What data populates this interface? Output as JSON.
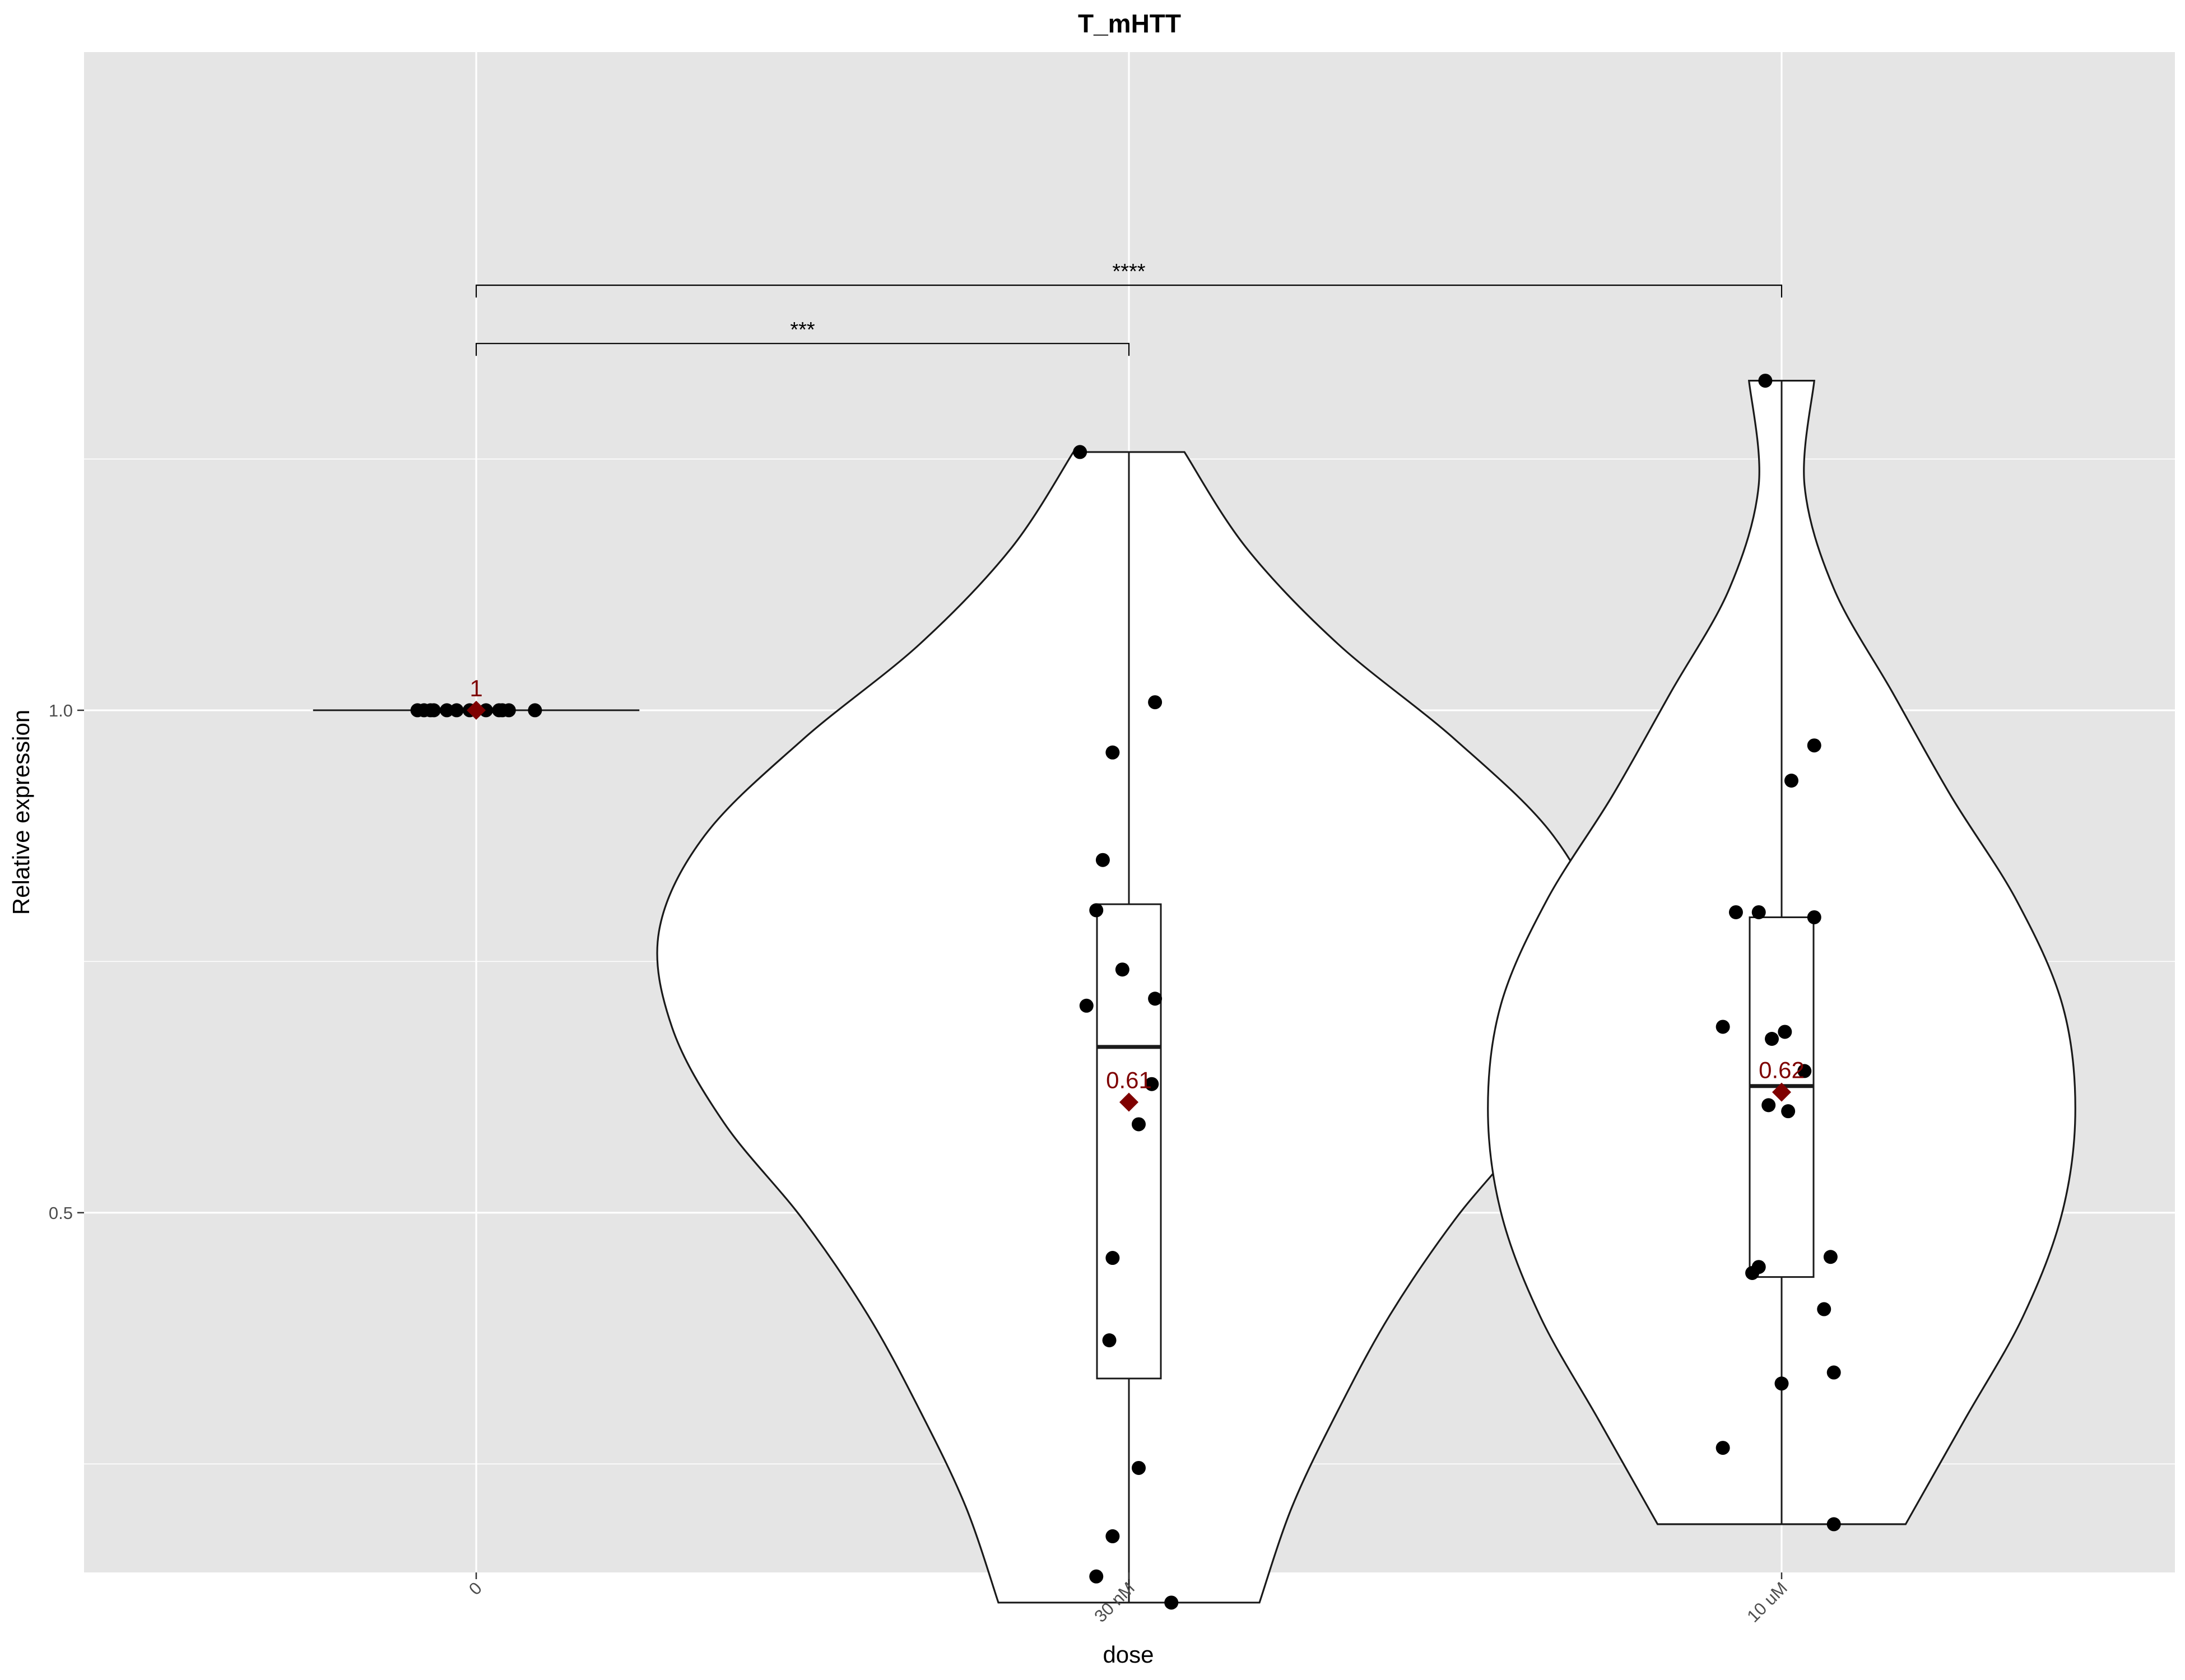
{
  "chart_data": {
    "type": "violin",
    "title": "T_mHTT",
    "xlabel": "dose",
    "ylabel": "Relative expression",
    "categories": [
      "0",
      "30 nM",
      "10 uM"
    ],
    "ylim": [
      0.142,
      1.655
    ],
    "yticks": [
      0.5,
      1.0
    ],
    "ytick_labels": [
      "0.5",
      "1.0"
    ],
    "grid": true,
    "background": "#e5e5e5",
    "groups": [
      {
        "category": "0",
        "points": [
          1.0,
          1.0,
          1.0,
          1.0,
          1.0,
          1.0,
          1.0,
          1.0,
          1.0,
          1.0,
          1.0,
          1.0
        ],
        "jitter": [
          -0.09,
          -0.08,
          -0.07,
          -0.065,
          -0.045,
          -0.03,
          -0.01,
          0.015,
          0.035,
          0.04,
          0.05,
          0.09
        ],
        "box": {
          "min": 1.0,
          "q1": 1.0,
          "median": 1.0,
          "q3": 1.0,
          "max": 1.0
        },
        "violin_halfwidth_max": 0.25,
        "mean": 1.0,
        "mean_label": "1"
      },
      {
        "category": "30 nM",
        "points": [
          1.257,
          1.008,
          0.958,
          0.851,
          0.801,
          0.742,
          0.706,
          0.713,
          0.628,
          0.588,
          0.455,
          0.373,
          0.246,
          0.178,
          0.138,
          0.112
        ],
        "jitter": [
          -0.075,
          0.04,
          -0.025,
          -0.04,
          -0.05,
          -0.01,
          -0.065,
          0.04,
          0.035,
          0.015,
          -0.025,
          -0.03,
          0.015,
          -0.025,
          -0.05,
          0.065
        ],
        "box": {
          "min": 0.112,
          "q1": 0.335,
          "median": 0.665,
          "q3": 0.807,
          "max": 1.257
        },
        "violin_halfwidth": [
          0.2,
          0.25,
          0.32,
          0.4,
          0.5,
          0.62,
          0.7,
          0.72,
          0.65,
          0.5,
          0.32,
          0.18,
          0.085
        ],
        "mean": 0.61,
        "mean_label": "0.61"
      },
      {
        "category": "10 uM",
        "points": [
          1.328,
          0.965,
          0.93,
          0.799,
          0.799,
          0.794,
          0.685,
          0.68,
          0.673,
          0.641,
          0.607,
          0.601,
          0.456,
          0.446,
          0.44,
          0.404,
          0.341,
          0.33,
          0.266,
          0.19
        ],
        "jitter": [
          -0.025,
          0.05,
          0.015,
          -0.07,
          -0.035,
          0.05,
          -0.09,
          0.005,
          -0.015,
          0.035,
          -0.02,
          0.01,
          0.075,
          -0.035,
          -0.045,
          0.065,
          0.08,
          0.0,
          -0.09,
          0.08
        ],
        "box": {
          "min": 0.19,
          "q1": 0.436,
          "median": 0.626,
          "q3": 0.794,
          "max": 1.328
        },
        "violin_halfwidth": [
          0.19,
          0.28,
          0.37,
          0.43,
          0.45,
          0.43,
          0.36,
          0.26,
          0.17,
          0.08,
          0.035,
          0.05
        ],
        "mean": 0.62,
        "mean_label": "0.62"
      }
    ],
    "comparisons": [
      {
        "from": "0",
        "to": "30 nM",
        "y": 1.365,
        "label": "***"
      },
      {
        "from": "0",
        "to": "10 uM",
        "y": 1.423,
        "label": "****"
      }
    ],
    "colors": {
      "panel": "#e5e5e5",
      "grid": "#ffffff",
      "violin_fill": "#ffffff",
      "outline": "#1a1a1a",
      "point": "#000000",
      "mean": "#7f0000"
    }
  }
}
